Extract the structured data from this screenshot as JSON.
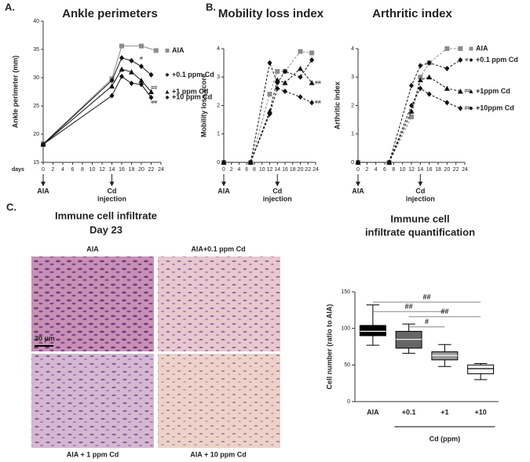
{
  "chart_data": [
    {
      "type": "line",
      "panel_label": "A.",
      "title": "Ankle perimeters",
      "ylabel": "Ankle perimeter (mm)",
      "xlabel": "days",
      "xlim": [
        0,
        24
      ],
      "xticks": [
        0,
        2,
        4,
        6,
        8,
        10,
        12,
        14,
        16,
        18,
        20,
        22,
        24
      ],
      "ylim": [
        15,
        40
      ],
      "yticks": [
        15,
        20,
        25,
        30,
        35,
        40
      ],
      "dashed": false,
      "legend": true,
      "events": [
        {
          "x": 0,
          "label": [
            "AIA"
          ]
        },
        {
          "x": 14,
          "label": [
            "Cd",
            "injection"
          ]
        }
      ],
      "series": [
        {
          "name": "AIA",
          "color": "#8c8c8c",
          "marker": "square",
          "x": [
            0,
            14,
            16,
            20,
            23
          ],
          "values": [
            18.3,
            29.8,
            35.6,
            35.6,
            34.8
          ]
        },
        {
          "name": "+0.1 ppm Cd",
          "color": "#111111",
          "marker": "diamond",
          "x": [
            0,
            14,
            16,
            18,
            20,
            22
          ],
          "values": [
            18.2,
            29.5,
            33.5,
            33.0,
            32.0,
            30.5
          ]
        },
        {
          "name": "+1 ppm Cd",
          "color": "#111111",
          "marker": "triangle",
          "x": [
            0,
            14,
            16,
            18,
            20,
            22
          ],
          "values": [
            18.2,
            28.5,
            31.5,
            31.0,
            29.5,
            27.5
          ]
        },
        {
          "name": "+10 ppm Cd",
          "color": "#111111",
          "marker": "diamond",
          "x": [
            0,
            14,
            16,
            18,
            20,
            22
          ],
          "values": [
            18.2,
            26.8,
            30.2,
            29.0,
            28.8,
            26.5
          ]
        }
      ],
      "annotations": [
        {
          "text": "#",
          "x": 20,
          "y": 33.4
        },
        {
          "text": "##",
          "x": 22.6,
          "y": 28.2
        },
        {
          "text": "##",
          "x": 22.6,
          "y": 25.6
        }
      ]
    },
    {
      "type": "line",
      "panel_label": "B.",
      "title": "Mobility loss index",
      "ylabel": "Mobility loss score",
      "xlim": [
        0,
        24
      ],
      "xticks": [
        0,
        2,
        4,
        6,
        8,
        10,
        12,
        14,
        16,
        18,
        20,
        22,
        24
      ],
      "ylim": [
        0,
        4
      ],
      "yticks": [
        0,
        1,
        2,
        3,
        4
      ],
      "dashed": true,
      "legend": false,
      "events": [
        {
          "x": 0,
          "label": [
            "AIA"
          ]
        },
        {
          "x": 14,
          "label": [
            "Cd",
            "injection"
          ]
        }
      ],
      "series": [
        {
          "color": "#8c8c8c",
          "marker": "square",
          "x": [
            0,
            7,
            12,
            14,
            16,
            20,
            23
          ],
          "values": [
            0,
            0,
            2.4,
            3.2,
            3.2,
            3.9,
            3.85
          ]
        },
        {
          "color": "#111111",
          "marker": "diamond",
          "x": [
            0,
            7,
            12,
            14,
            16,
            20,
            23
          ],
          "values": [
            0,
            0,
            3.5,
            2.8,
            3.2,
            3.0,
            3.6
          ]
        },
        {
          "color": "#111111",
          "marker": "triangle",
          "x": [
            0,
            7,
            12,
            14,
            16,
            20,
            23
          ],
          "values": [
            0,
            0,
            1.8,
            2.9,
            2.8,
            3.3,
            2.8
          ]
        },
        {
          "color": "#111111",
          "marker": "diamond",
          "x": [
            0,
            7,
            12,
            14,
            16,
            20,
            23
          ],
          "values": [
            0,
            0,
            1.7,
            2.6,
            2.5,
            2.3,
            2.1
          ]
        }
      ],
      "annotations": [
        {
          "text": "##",
          "x": 24.6,
          "y": 2.8
        },
        {
          "text": "##",
          "x": 24.6,
          "y": 2.1
        }
      ]
    },
    {
      "type": "line",
      "title": "Arthritic index",
      "ylabel": "Arthritic index",
      "xlim": [
        0,
        24
      ],
      "xticks": [
        0,
        2,
        4,
        6,
        8,
        10,
        12,
        14,
        16,
        18,
        20,
        22,
        24
      ],
      "ylim": [
        0,
        4
      ],
      "yticks": [
        0,
        1,
        2,
        3,
        4
      ],
      "dashed": true,
      "legend": true,
      "events": [
        {
          "x": 0,
          "label": [
            "AIA"
          ]
        },
        {
          "x": 14,
          "label": [
            "Cd",
            "injection"
          ]
        }
      ],
      "series": [
        {
          "name": "AIA",
          "color": "#8c8c8c",
          "marker": "square",
          "x": [
            0,
            7,
            12,
            14,
            16,
            20,
            23
          ],
          "values": [
            0,
            0,
            1.6,
            3.0,
            3.5,
            4.0,
            4.0
          ]
        },
        {
          "name": "+0.1 ppm Cd",
          "color": "#111111",
          "marker": "diamond",
          "x": [
            0,
            7,
            12,
            14,
            16,
            20,
            23
          ],
          "values": [
            0,
            0,
            2.7,
            3.4,
            3.5,
            3.3,
            3.6
          ]
        },
        {
          "name": "+1ppm Cd",
          "color": "#111111",
          "marker": "triangle",
          "x": [
            0,
            7,
            12,
            14,
            16,
            20,
            23
          ],
          "values": [
            0,
            0,
            1.8,
            2.9,
            3.0,
            2.6,
            2.5
          ]
        },
        {
          "name": "+10ppm Cd",
          "color": "#111111",
          "marker": "diamond",
          "x": [
            0,
            7,
            12,
            14,
            16,
            20,
            23
          ],
          "values": [
            0,
            0,
            2.0,
            2.6,
            2.4,
            2.1,
            1.9
          ]
        }
      ],
      "annotations": [
        {
          "text": "#",
          "x": 24.4,
          "y": 3.6
        },
        {
          "text": "##",
          "x": 24.6,
          "y": 2.5
        },
        {
          "text": "##",
          "x": 24.6,
          "y": 1.9
        }
      ]
    },
    {
      "type": "box",
      "title": [
        "Immune cell",
        "infiltrate quantification"
      ],
      "ylabel": "Cell number (ratio to AIA)",
      "ylim": [
        0,
        150
      ],
      "yticks": [
        0,
        50,
        100,
        150
      ],
      "categories": [
        "AIA",
        "+0.1",
        "+1",
        "+10"
      ],
      "group": {
        "label": "Cd (ppm)",
        "from": 1,
        "to": 3
      },
      "boxes": [
        {
          "min": 77,
          "q1": 90,
          "median": 96,
          "q3": 104,
          "max": 132,
          "color": "#000000"
        },
        {
          "min": 66,
          "q1": 73,
          "median": 85,
          "q3": 96,
          "max": 106,
          "color": "#666666"
        },
        {
          "min": 48,
          "q1": 57,
          "median": 63,
          "q3": 68,
          "max": 78,
          "color": "#999999"
        },
        {
          "min": 30,
          "q1": 38,
          "median": 45,
          "q3": 50,
          "max": 52,
          "color": "#ffffff"
        }
      ],
      "brackets": [
        {
          "from": 0,
          "to": 3,
          "y": 136,
          "label": "##"
        },
        {
          "from": 0,
          "to": 2,
          "y": 123,
          "label": "##"
        },
        {
          "from": 1,
          "to": 3,
          "y": 116,
          "label": "##"
        },
        {
          "from": 1,
          "to": 2,
          "y": 102,
          "label": "#"
        }
      ]
    }
  ],
  "image_panel": {
    "panel_label": "C.",
    "title": "Immune cell infiltrate",
    "subtitle": "Day 23",
    "labels": [
      "AIA",
      "AIA+0.1 ppm Cd",
      "AIA + 1 ppm Cd",
      "AIA + 10 ppm Cd"
    ],
    "scale_bar": "30 µm"
  }
}
